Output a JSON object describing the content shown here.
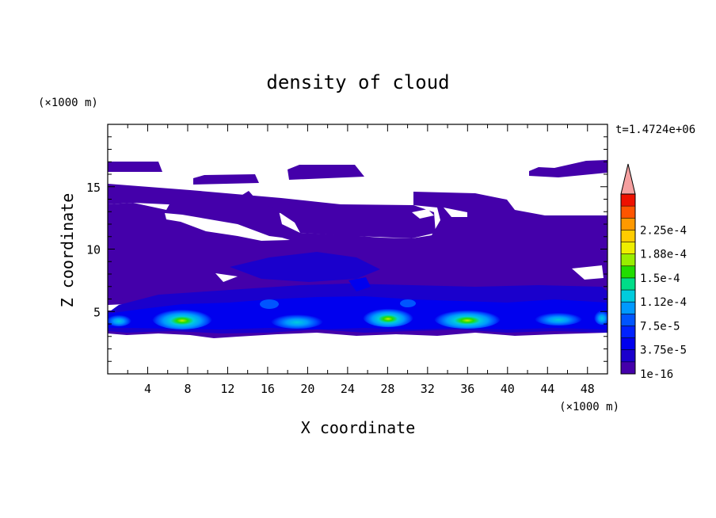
{
  "chart_data": {
    "type": "heatmap",
    "title": "density of cloud",
    "xlabel": "X coordinate",
    "ylabel": "Z coordinate",
    "x_unit": "(×1000 m)",
    "y_unit": "(×1000 m)",
    "time_label": "t=1.4724e+06",
    "xlim": [
      0,
      50
    ],
    "ylim": [
      0,
      20
    ],
    "x_ticks": [
      4,
      8,
      12,
      16,
      20,
      24,
      28,
      32,
      36,
      40,
      44,
      48
    ],
    "y_ticks": [
      5,
      10,
      15
    ],
    "colorbar": {
      "levels": [
        "1e-16",
        "1.875e-5",
        "3.75e-5",
        "5.625e-5",
        "7.5e-5",
        "9.375e-5",
        "1.125e-4",
        "1.3125e-4",
        "1.5e-4",
        "1.6875e-4",
        "1.875e-4",
        "2.0625e-4",
        "2.25e-4",
        "2.4375e-4"
      ],
      "labels": [
        "1e-16",
        "3.75e-5",
        "7.5e-5",
        "1.12e-4",
        "1.5e-4",
        "1.88e-4",
        "2.25e-4"
      ],
      "colors": [
        "#4400aa",
        "#1a00cc",
        "#0000ee",
        "#0022ff",
        "#0055ff",
        "#0099ff",
        "#00ccdd",
        "#00dd88",
        "#22dd00",
        "#99ee00",
        "#eeee00",
        "#ffcc00",
        "#ff9900",
        "#ff5500",
        "#ee1100"
      ],
      "over_color": "#f5a0a0",
      "extend": "max"
    }
  }
}
